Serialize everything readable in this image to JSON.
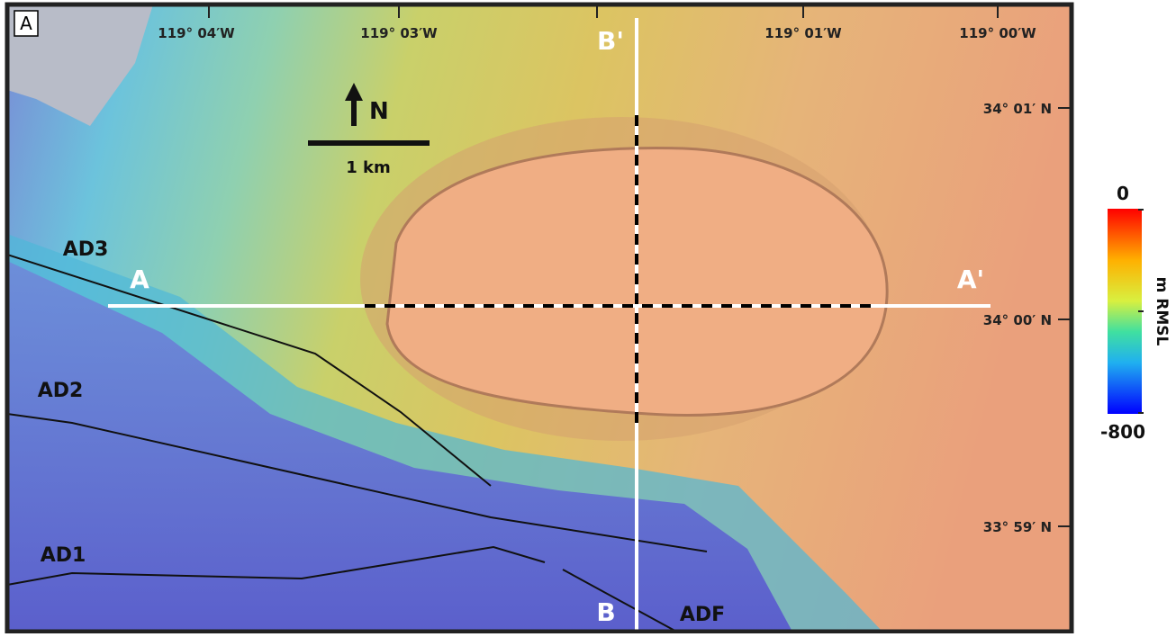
{
  "panel_label": "A",
  "longitude_labels": [
    "119° 04′W",
    "119° 03′W",
    "119° 01′W",
    "119° 00′W"
  ],
  "latitude_labels": [
    "34° 01′ N",
    "34° 00′ N",
    "33° 59′ N"
  ],
  "north_arrow": "N",
  "scale_bar": "1 km",
  "profiles": {
    "a_start": "A",
    "a_end": "A'",
    "b_start": "B",
    "b_end": "B'"
  },
  "faults": [
    "AD3",
    "AD2",
    "AD1",
    "ADF"
  ],
  "colorbar": {
    "title": "m RMSL",
    "top_label": "0",
    "bottom_label": "-800"
  }
}
